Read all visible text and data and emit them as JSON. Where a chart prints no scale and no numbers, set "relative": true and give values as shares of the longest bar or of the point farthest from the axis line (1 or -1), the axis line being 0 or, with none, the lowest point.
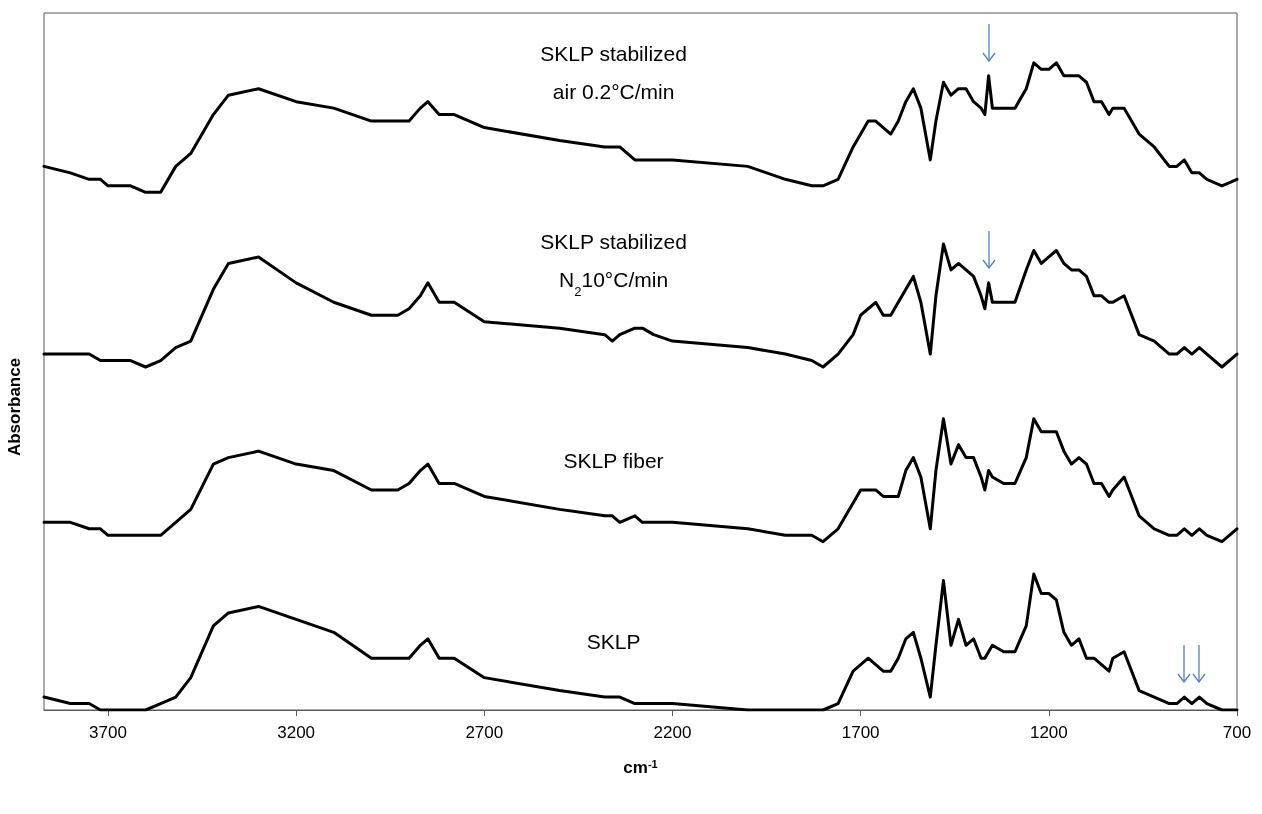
{
  "chart_data": {
    "type": "line",
    "relative": true,
    "xlabel": "cm$^{-1}$",
    "ylabel": "Absorbance",
    "legend": false,
    "grid": false,
    "marker": "none",
    "xlim": [
      3870,
      700
    ],
    "xticks": [
      3700,
      3200,
      2700,
      2200,
      1700,
      1200,
      700
    ],
    "x": [
      3870,
      3800,
      3750,
      3720,
      3700,
      3680,
      3640,
      3600,
      3560,
      3520,
      3480,
      3420,
      3380,
      3300,
      3200,
      3100,
      3000,
      2960,
      2930,
      2900,
      2870,
      2850,
      2820,
      2780,
      2700,
      2500,
      2380,
      2360,
      2340,
      2300,
      2280,
      2250,
      2200,
      2000,
      1900,
      1830,
      1800,
      1760,
      1720,
      1700,
      1680,
      1660,
      1640,
      1620,
      1600,
      1580,
      1560,
      1540,
      1515,
      1500,
      1480,
      1460,
      1440,
      1420,
      1400,
      1380,
      1370,
      1360,
      1350,
      1320,
      1290,
      1260,
      1240,
      1220,
      1200,
      1180,
      1160,
      1140,
      1120,
      1100,
      1080,
      1060,
      1040,
      1030,
      1000,
      960,
      920,
      880,
      860,
      840,
      820,
      800,
      780,
      740,
      700
    ],
    "series": [
      {
        "name": "SKLP stabilized\nair 0.2°C/min",
        "color": "#000000",
        "values": [
          0.84,
          0.83,
          0.82,
          0.82,
          0.81,
          0.81,
          0.81,
          0.8,
          0.8,
          0.84,
          0.86,
          0.92,
          0.95,
          0.96,
          0.94,
          0.93,
          0.91,
          0.91,
          0.91,
          0.91,
          0.93,
          0.94,
          0.92,
          0.92,
          0.9,
          0.88,
          0.87,
          0.87,
          0.87,
          0.85,
          0.85,
          0.85,
          0.85,
          0.84,
          0.82,
          0.81,
          0.81,
          0.82,
          0.87,
          0.89,
          0.91,
          0.91,
          0.9,
          0.89,
          0.91,
          0.94,
          0.96,
          0.93,
          0.85,
          0.91,
          0.97,
          0.95,
          0.96,
          0.96,
          0.94,
          0.93,
          0.92,
          0.98,
          0.93,
          0.93,
          0.93,
          0.96,
          1.0,
          0.99,
          0.99,
          1.0,
          0.98,
          0.98,
          0.98,
          0.97,
          0.94,
          0.94,
          0.92,
          0.93,
          0.93,
          0.89,
          0.87,
          0.84,
          0.84,
          0.85,
          0.83,
          0.83,
          0.82,
          0.81,
          0.82
        ]
      },
      {
        "name": "SKLP stabilized\nN$_{2}$10°C/min",
        "color": "#000000",
        "values": [
          0.55,
          0.55,
          0.55,
          0.54,
          0.54,
          0.54,
          0.54,
          0.53,
          0.54,
          0.56,
          0.57,
          0.65,
          0.69,
          0.7,
          0.66,
          0.63,
          0.61,
          0.61,
          0.61,
          0.62,
          0.64,
          0.66,
          0.63,
          0.63,
          0.6,
          0.59,
          0.58,
          0.57,
          0.58,
          0.59,
          0.59,
          0.58,
          0.57,
          0.56,
          0.55,
          0.54,
          0.53,
          0.55,
          0.58,
          0.61,
          0.62,
          0.63,
          0.61,
          0.61,
          0.63,
          0.65,
          0.67,
          0.63,
          0.55,
          0.64,
          0.72,
          0.68,
          0.69,
          0.68,
          0.67,
          0.64,
          0.62,
          0.66,
          0.63,
          0.63,
          0.63,
          0.68,
          0.71,
          0.69,
          0.7,
          0.71,
          0.69,
          0.68,
          0.68,
          0.67,
          0.64,
          0.64,
          0.63,
          0.63,
          0.64,
          0.58,
          0.57,
          0.55,
          0.55,
          0.56,
          0.55,
          0.56,
          0.55,
          0.53,
          0.55
        ]
      },
      {
        "name": "SKLP fiber",
        "color": "#000000",
        "values": [
          0.29,
          0.29,
          0.28,
          0.28,
          0.27,
          0.27,
          0.27,
          0.27,
          0.27,
          0.29,
          0.31,
          0.38,
          0.39,
          0.4,
          0.38,
          0.37,
          0.34,
          0.34,
          0.34,
          0.35,
          0.37,
          0.38,
          0.35,
          0.35,
          0.33,
          0.31,
          0.3,
          0.3,
          0.29,
          0.3,
          0.29,
          0.29,
          0.29,
          0.28,
          0.27,
          0.27,
          0.26,
          0.28,
          0.32,
          0.34,
          0.34,
          0.34,
          0.33,
          0.33,
          0.33,
          0.37,
          0.39,
          0.36,
          0.28,
          0.37,
          0.45,
          0.38,
          0.41,
          0.39,
          0.39,
          0.36,
          0.34,
          0.37,
          0.36,
          0.35,
          0.35,
          0.39,
          0.45,
          0.43,
          0.43,
          0.43,
          0.4,
          0.38,
          0.39,
          0.38,
          0.35,
          0.35,
          0.33,
          0.34,
          0.36,
          0.3,
          0.28,
          0.27,
          0.27,
          0.28,
          0.27,
          0.28,
          0.27,
          0.26,
          0.28
        ]
      },
      {
        "name": "SKLP",
        "color": "#000000",
        "values": [
          0.02,
          0.01,
          0.01,
          0.0,
          0.0,
          0.0,
          0.0,
          0.0,
          0.01,
          0.02,
          0.05,
          0.13,
          0.15,
          0.16,
          0.14,
          0.12,
          0.08,
          0.08,
          0.08,
          0.08,
          0.1,
          0.11,
          0.08,
          0.08,
          0.05,
          0.03,
          0.02,
          0.02,
          0.02,
          0.01,
          0.01,
          0.01,
          0.01,
          0.0,
          0.0,
          0.0,
          0.0,
          0.01,
          0.06,
          0.07,
          0.08,
          0.07,
          0.06,
          0.06,
          0.08,
          0.11,
          0.12,
          0.08,
          0.02,
          0.1,
          0.2,
          0.1,
          0.14,
          0.1,
          0.11,
          0.08,
          0.08,
          0.09,
          0.1,
          0.09,
          0.09,
          0.13,
          0.21,
          0.18,
          0.18,
          0.17,
          0.12,
          0.1,
          0.11,
          0.08,
          0.08,
          0.07,
          0.06,
          0.08,
          0.09,
          0.03,
          0.02,
          0.01,
          0.01,
          0.02,
          0.01,
          0.02,
          0.01,
          0.0,
          0.0
        ]
      }
    ]
  }
}
